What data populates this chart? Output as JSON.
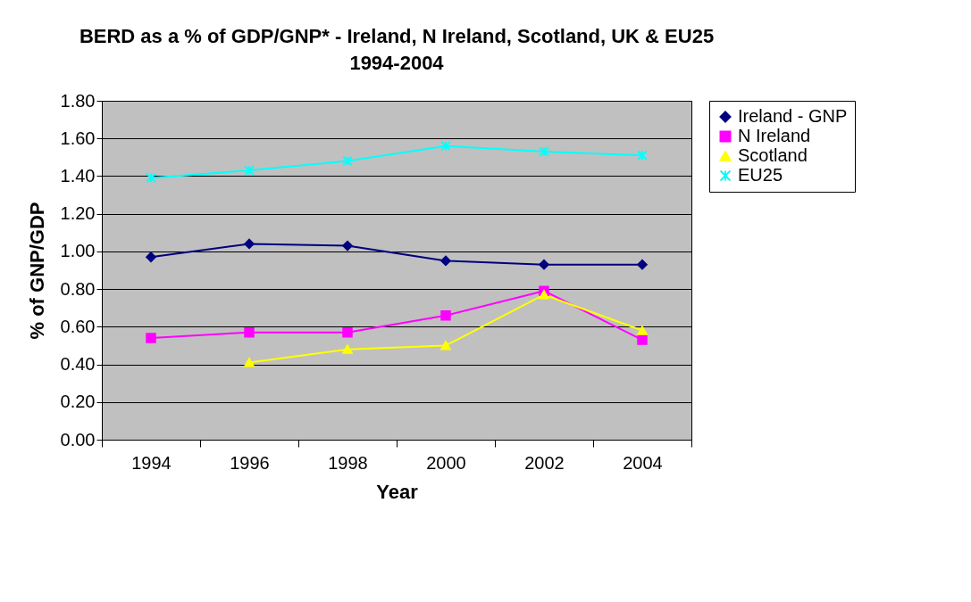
{
  "chart_data": {
    "type": "line",
    "title": "BERD as a % of GDP/GNP* - Ireland, N Ireland, Scotland, UK & EU25 1994-2004",
    "xlabel": "Year",
    "ylabel": "% of GNP/GDP",
    "categories": [
      "1994",
      "1996",
      "1998",
      "2000",
      "2002",
      "2004"
    ],
    "ylim": [
      0,
      1.8
    ],
    "yticks": [
      {
        "value": 0,
        "label": "0.00"
      },
      {
        "value": 0.2,
        "label": "0.20"
      },
      {
        "value": 0.4,
        "label": "0.40"
      },
      {
        "value": 0.6,
        "label": "0.60"
      },
      {
        "value": 0.8,
        "label": "0.80"
      },
      {
        "value": 1.0,
        "label": "1.00"
      },
      {
        "value": 1.2,
        "label": "1.20"
      },
      {
        "value": 1.4,
        "label": "1.40"
      },
      {
        "value": 1.6,
        "label": "1.60"
      },
      {
        "value": 1.8,
        "label": "1.80"
      }
    ],
    "grid": "y",
    "legend": "right",
    "series": [
      {
        "name": "Ireland - GNP",
        "color": "#000080",
        "marker": "diamond",
        "values": [
          0.97,
          1.04,
          1.03,
          0.95,
          0.93,
          0.93
        ]
      },
      {
        "name": "N Ireland",
        "color": "#ff00ff",
        "marker": "square",
        "values": [
          0.54,
          0.57,
          0.57,
          0.66,
          0.79,
          0.53
        ]
      },
      {
        "name": "Scotland",
        "color": "#ffff00",
        "marker": "triangle",
        "values": [
          null,
          0.41,
          0.48,
          0.5,
          0.77,
          0.58
        ]
      },
      {
        "name": "EU25",
        "color": "#00ffff",
        "marker": "cross",
        "values": [
          1.39,
          1.43,
          1.48,
          1.56,
          1.53,
          1.51
        ]
      }
    ]
  }
}
